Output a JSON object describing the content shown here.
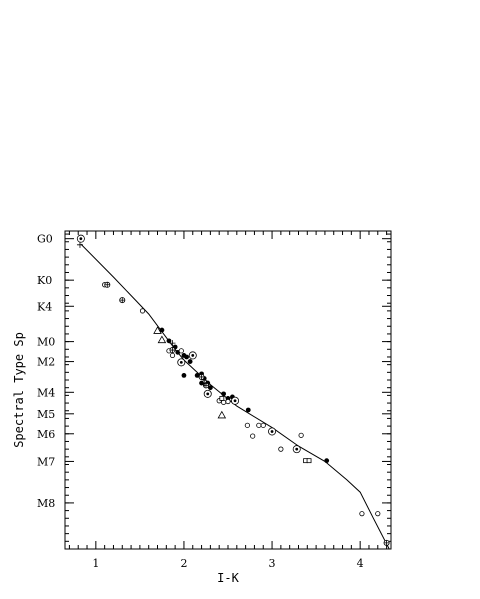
{
  "chart_data": {
    "type": "scatter",
    "title": "",
    "xlabel": "I-K",
    "ylabel": "Spectral Type Sp",
    "xlim": [
      0.65,
      4.35
    ],
    "ylim": [
      -0.2,
      20.5
    ],
    "x_ticks": [
      {
        "value": 1,
        "label": "1"
      },
      {
        "value": 2,
        "label": "2"
      },
      {
        "value": 3,
        "label": "3"
      },
      {
        "value": 4,
        "label": "4"
      }
    ],
    "y_ticks": [
      {
        "value": 0.3,
        "label": "G0"
      },
      {
        "value": 3,
        "label": "K0"
      },
      {
        "value": 4.7,
        "label": "K4"
      },
      {
        "value": 7,
        "label": "M0"
      },
      {
        "value": 8.3,
        "label": "M2"
      },
      {
        "value": 10.3,
        "label": "M4"
      },
      {
        "value": 11.7,
        "label": "M5"
      },
      {
        "value": 13,
        "label": "M6"
      },
      {
        "value": 14.8,
        "label": "M7"
      },
      {
        "value": 17.5,
        "label": "M8"
      }
    ],
    "grid": false,
    "legend": "none",
    "fit_line": [
      [
        0.83,
        0.65
      ],
      [
        1.2,
        2.8
      ],
      [
        1.6,
        5.2
      ],
      [
        1.9,
        7.5
      ],
      [
        2.0,
        8.2
      ],
      [
        2.3,
        9.8
      ],
      [
        2.6,
        11.2
      ],
      [
        3.0,
        12.6
      ],
      [
        3.3,
        13.8
      ],
      [
        3.6,
        14.8
      ],
      [
        3.85,
        16.0
      ],
      [
        4.0,
        16.8
      ],
      [
        4.15,
        18.5
      ],
      [
        4.33,
        20.5
      ]
    ],
    "series": [
      {
        "marker": "filled-circle",
        "points": [
          [
            1.75,
            6.25
          ],
          [
            1.83,
            6.95
          ],
          [
            1.9,
            7.35
          ],
          [
            1.93,
            7.7
          ],
          [
            2.0,
            7.9
          ],
          [
            2.03,
            8.0
          ],
          [
            2.07,
            8.3
          ],
          [
            2.0,
            9.2
          ],
          [
            2.15,
            9.2
          ],
          [
            2.2,
            9.1
          ],
          [
            2.23,
            9.4
          ],
          [
            2.2,
            9.7
          ],
          [
            2.27,
            9.7
          ],
          [
            2.3,
            10.0
          ],
          [
            2.28,
            10.35
          ],
          [
            2.45,
            10.4
          ],
          [
            2.5,
            10.7
          ],
          [
            2.55,
            10.6
          ],
          [
            2.73,
            11.45
          ],
          [
            3.62,
            14.75
          ]
        ]
      },
      {
        "marker": "open-circle",
        "points": [
          [
            1.1,
            3.3
          ],
          [
            1.53,
            5.0
          ],
          [
            1.83,
            7.6
          ],
          [
            1.87,
            7.9
          ],
          [
            1.97,
            7.6
          ],
          [
            2.4,
            10.85
          ],
          [
            2.45,
            10.95
          ],
          [
            2.5,
            10.9
          ],
          [
            2.72,
            12.45
          ],
          [
            2.78,
            13.15
          ],
          [
            2.85,
            12.45
          ],
          [
            2.9,
            12.45
          ],
          [
            3.1,
            14.0
          ],
          [
            3.33,
            13.1
          ],
          [
            4.02,
            18.2
          ],
          [
            4.2,
            18.2
          ]
        ]
      },
      {
        "marker": "circled-dot",
        "points": [
          [
            0.83,
            0.3
          ],
          [
            1.97,
            8.35
          ],
          [
            2.1,
            7.9
          ],
          [
            2.27,
            10.4
          ],
          [
            2.58,
            10.85
          ],
          [
            3.0,
            12.85
          ],
          [
            3.28,
            14.0
          ]
        ]
      },
      {
        "marker": "circled-plus",
        "points": [
          [
            1.13,
            3.3
          ],
          [
            1.3,
            4.3
          ],
          [
            1.87,
            7.55
          ],
          [
            2.2,
            9.3
          ],
          [
            2.25,
            9.85
          ],
          [
            4.3,
            20.1
          ]
        ]
      },
      {
        "marker": "open-triangle",
        "points": [
          [
            1.7,
            6.3
          ],
          [
            1.75,
            6.9
          ],
          [
            2.43,
            11.8
          ]
        ]
      },
      {
        "marker": "plus",
        "points": [
          [
            0.82,
            0.7
          ],
          [
            1.87,
            7.1
          ],
          [
            2.23,
            9.75
          ]
        ]
      },
      {
        "marker": "open-square",
        "points": [
          [
            2.43,
            10.7
          ],
          [
            3.38,
            14.75
          ],
          [
            3.42,
            14.75
          ]
        ]
      }
    ]
  }
}
